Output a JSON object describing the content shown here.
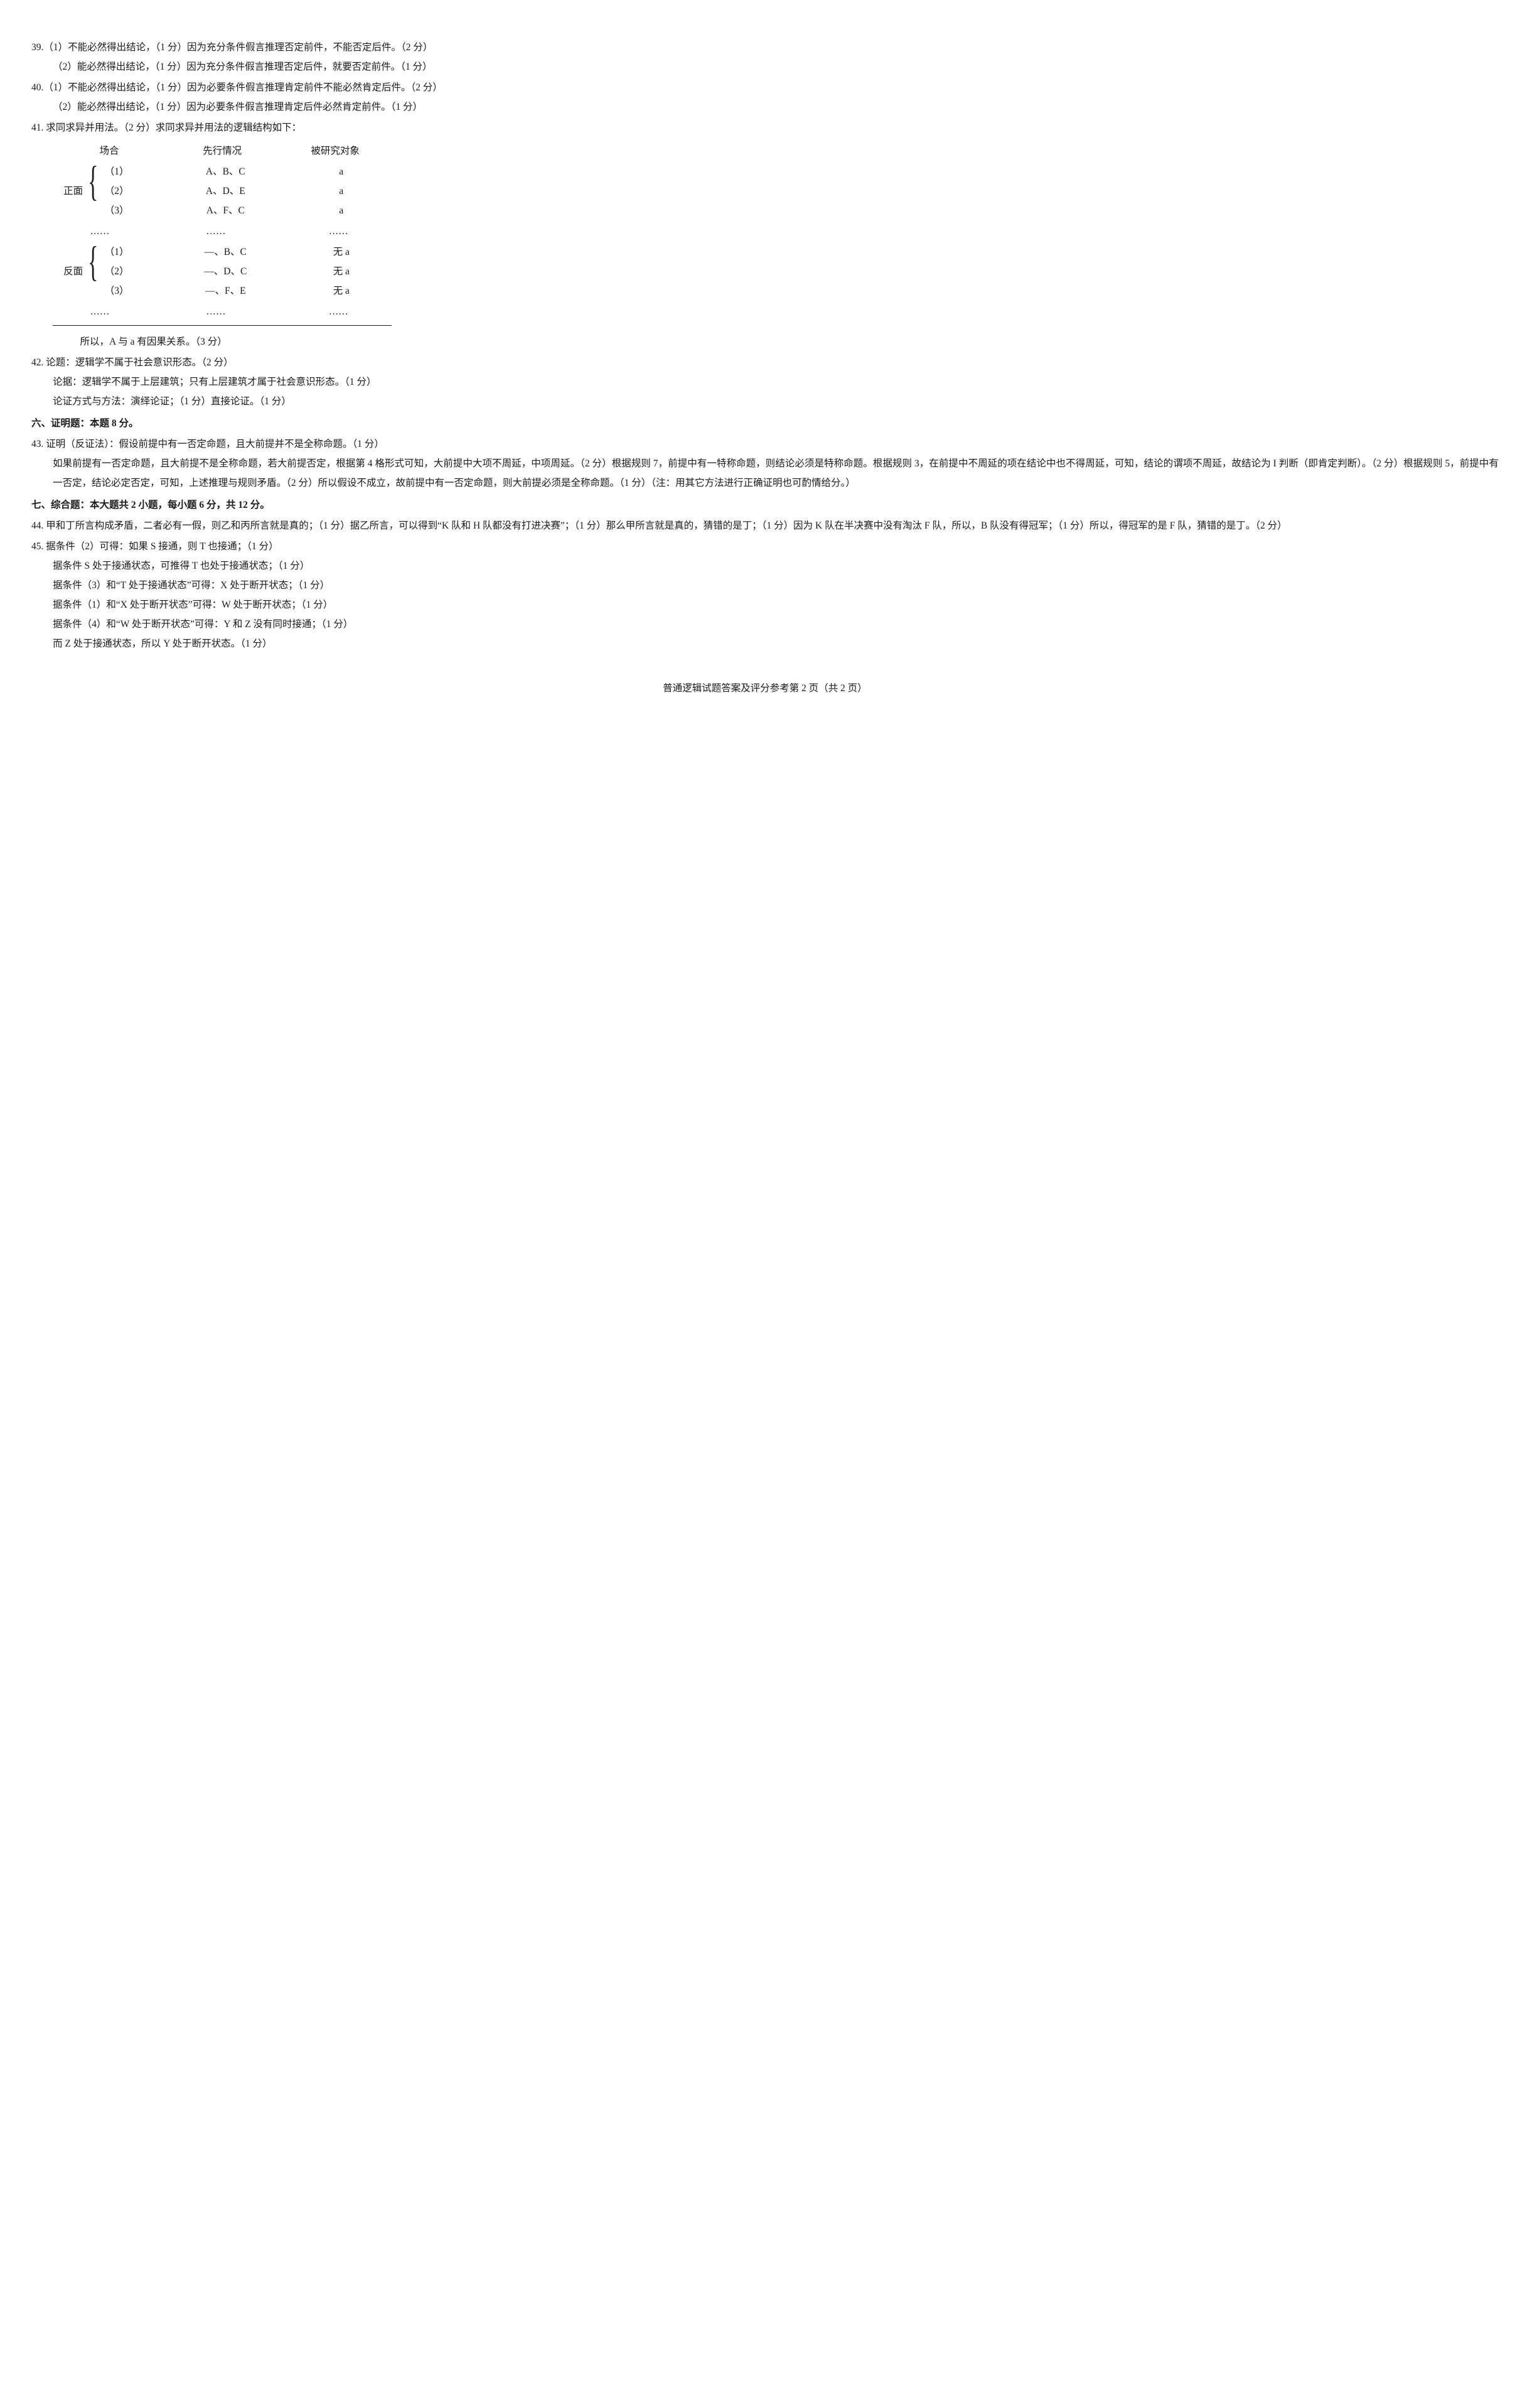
{
  "q39": {
    "p1": "39.（1）不能必然得出结论，（1 分）因为充分条件假言推理否定前件，不能否定后件。（2 分）",
    "p2": "（2）能必然得出结论，（1 分）因为充分条件假言推理否定后件，就要否定前件。（1 分）"
  },
  "q40": {
    "p1": "40.（1）不能必然得出结论，（1 分）因为必要条件假言推理肯定前件不能必然肯定后件。（2 分）",
    "p2": "（2）能必然得出结论，（1 分）因为必要条件假言推理肯定后件必然肯定前件。（1 分）"
  },
  "q41": {
    "intro": "41. 求同求异并用法。（2 分）求同求异并用法的逻辑结构如下：",
    "table": {
      "headers": {
        "h1": "场合",
        "h2": "先行情况",
        "h3": "被研究对象"
      },
      "pos_label": "正面",
      "neg_label": "反面",
      "pos_rows": [
        {
          "c1": "（1）",
          "c2": "A、B、C",
          "c3": "a"
        },
        {
          "c1": "（2）",
          "c2": "A、D、E",
          "c3": "a"
        },
        {
          "c1": "（3）",
          "c2": "A、F、C",
          "c3": "a"
        }
      ],
      "neg_rows": [
        {
          "c1": "（1）",
          "c2": "—、B、C",
          "c3": "无 a"
        },
        {
          "c1": "（2）",
          "c2": "—、D、C",
          "c3": "无 a"
        },
        {
          "c1": "（3）",
          "c2": "—、F、E",
          "c3": "无 a"
        }
      ],
      "ellipsis": "……"
    },
    "conclusion": "所以，A 与 a 有因果关系。（3 分）"
  },
  "q42": {
    "p1": "42. 论题：逻辑学不属于社会意识形态。（2 分）",
    "p2": "论据：逻辑学不属于上层建筑；只有上层建筑才属于社会意识形态。（1 分）",
    "p3": "论证方式与方法：演绎论证；（1 分）直接论证。（1 分）"
  },
  "section6": "六、证明题：本题 8 分。",
  "q43": {
    "p1": "43. 证明（反证法）：假设前提中有一否定命题，且大前提并不是全称命题。（1 分）",
    "p2": "如果前提有一否定命题，且大前提不是全称命题，若大前提否定，根据第 4 格形式可知，大前提中大项不周延，中项周延。（2 分）根据规则 7，前提中有一特称命题，则结论必须是特称命题。根据规则 3，在前提中不周延的项在结论中也不得周延，可知，结论的谓项不周延，故结论为 I 判断（即肯定判断）。（2 分）根据规则 5，前提中有一否定，结论必定否定，可知，上述推理与规则矛盾。（2 分）所以假设不成立，故前提中有一否定命题，则大前提必须是全称命题。（1 分）（注：用其它方法进行正确证明也可酌情给分。）"
  },
  "section7": "七、综合题：本大题共 2 小题，每小题 6 分，共 12 分。",
  "q44": {
    "p1": "44. 甲和丁所言构成矛盾，二者必有一假，则乙和丙所言就是真的；（1 分）据乙所言，可以得到“K 队和 H 队都没有打进决赛”；（1 分）那么甲所言就是真的，猜错的是丁；（1 分）因为 K 队在半决赛中没有淘汰 F 队，所以，B 队没有得冠军；（1 分）所以，得冠军的是 F 队，猜错的是丁。（2 分）"
  },
  "q45": {
    "p1": "45. 据条件（2）可得：如果 S 接通，则 T 也接通；（1 分）",
    "p2": "据条件 S 处于接通状态，可推得 T 也处于接通状态；（1 分）",
    "p3": "据条件（3）和“T 处于接通状态”可得：X 处于断开状态；（1 分）",
    "p4": "据条件（1）和“X 处于断开状态”可得：W 处于断开状态；（1 分）",
    "p5": "据条件（4）和“W 处于断开状态”可得：Y 和 Z 没有同时接通；（1 分）",
    "p6": "而 Z 处于接通状态，所以 Y 处于断开状态。（1 分）"
  },
  "footer": "普通逻辑试题答案及评分参考第 2 页（共 2 页）"
}
